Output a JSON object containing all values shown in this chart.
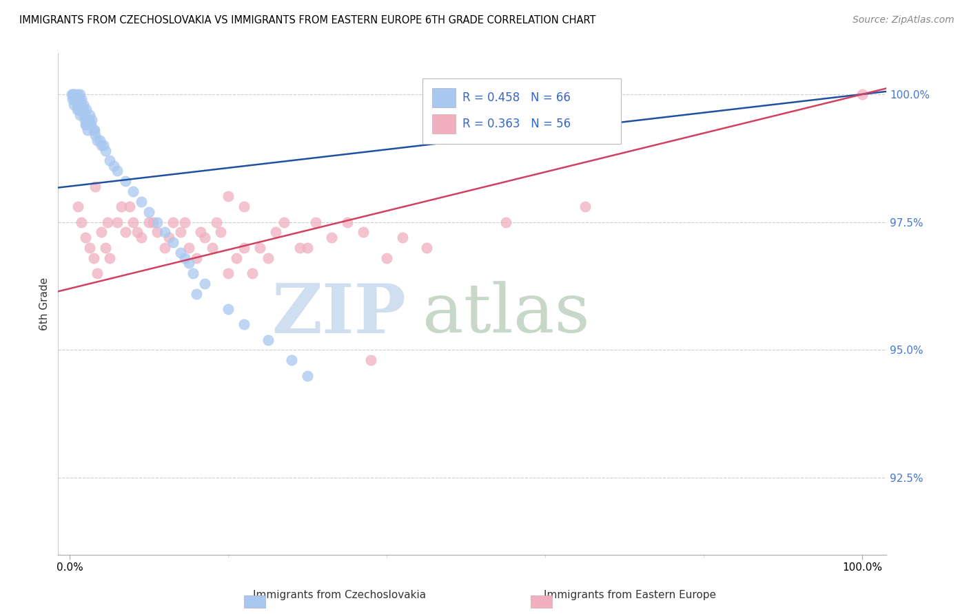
{
  "title": "IMMIGRANTS FROM CZECHOSLOVAKIA VS IMMIGRANTS FROM EASTERN EUROPE 6TH GRADE CORRELATION CHART",
  "source": "Source: ZipAtlas.com",
  "ylabel": "6th Grade",
  "y_ticks": [
    92.5,
    95.0,
    97.5,
    100.0
  ],
  "x_ticks": [
    0,
    100
  ],
  "x_tick_labels": [
    "0.0%",
    "100.0%"
  ],
  "y_min": 91.0,
  "y_max": 100.8,
  "x_min": -1.5,
  "x_max": 103.0,
  "legend_blue_r": "R = 0.458",
  "legend_blue_n": "N = 66",
  "legend_pink_r": "R = 0.363",
  "legend_pink_n": "N = 56",
  "legend_label_blue": "Immigrants from Czechoslovakia",
  "legend_label_pink": "Immigrants from Eastern Europe",
  "blue_color": "#A8C8F0",
  "pink_color": "#F0B0C0",
  "blue_line_color": "#2050A0",
  "pink_line_color": "#D04060",
  "blue_scatter_x": [
    0.2,
    0.3,
    0.4,
    0.5,
    0.6,
    0.7,
    0.8,
    0.9,
    1.0,
    1.1,
    1.2,
    1.3,
    1.4,
    1.5,
    1.6,
    1.7,
    1.8,
    1.9,
    2.0,
    2.1,
    2.2,
    2.3,
    2.5,
    2.7,
    3.0,
    3.2,
    3.5,
    4.0,
    4.5,
    5.0,
    5.5,
    6.0,
    7.0,
    8.0,
    9.0,
    10.0,
    11.0,
    12.0,
    13.0,
    14.0,
    15.0,
    17.0,
    20.0,
    22.0,
    25.0,
    28.0,
    30.0,
    14.5,
    15.5,
    16.0,
    3.8,
    4.2,
    2.8,
    3.1,
    1.1,
    0.6,
    0.9,
    1.3,
    2.1,
    0.4,
    0.7,
    0.5,
    1.0,
    0.8,
    1.6,
    2.4
  ],
  "blue_scatter_y": [
    100.0,
    99.9,
    100.0,
    99.8,
    99.9,
    100.0,
    99.9,
    99.8,
    100.0,
    99.7,
    99.9,
    100.0,
    99.8,
    99.9,
    99.7,
    99.8,
    99.6,
    99.5,
    99.4,
    99.7,
    99.3,
    99.5,
    99.6,
    99.4,
    99.3,
    99.2,
    99.1,
    99.0,
    98.9,
    98.7,
    98.6,
    98.5,
    98.3,
    98.1,
    97.9,
    97.7,
    97.5,
    97.3,
    97.1,
    96.9,
    96.7,
    96.3,
    95.8,
    95.5,
    95.2,
    94.8,
    94.5,
    96.8,
    96.5,
    96.1,
    99.1,
    99.0,
    99.5,
    99.3,
    99.8,
    99.9,
    99.7,
    99.6,
    99.4,
    100.0,
    99.9,
    100.0,
    99.8,
    99.9,
    99.7,
    99.5
  ],
  "pink_scatter_x": [
    1.0,
    1.5,
    2.0,
    2.5,
    3.0,
    3.5,
    4.0,
    4.5,
    5.0,
    6.0,
    7.0,
    7.5,
    8.0,
    9.0,
    10.0,
    11.0,
    12.0,
    13.0,
    14.0,
    15.0,
    16.0,
    17.0,
    18.0,
    19.0,
    20.0,
    21.0,
    22.0,
    23.0,
    24.0,
    25.0,
    27.0,
    29.0,
    31.0,
    33.0,
    35.0,
    37.0,
    40.0,
    45.0,
    55.0,
    65.0,
    100.0,
    3.2,
    4.8,
    6.5,
    8.5,
    10.5,
    12.5,
    14.5,
    16.5,
    18.5,
    22.0,
    26.0,
    30.0,
    38.0,
    42.0,
    20.0
  ],
  "pink_scatter_y": [
    97.8,
    97.5,
    97.2,
    97.0,
    96.8,
    96.5,
    97.3,
    97.0,
    96.8,
    97.5,
    97.3,
    97.8,
    97.5,
    97.2,
    97.5,
    97.3,
    97.0,
    97.5,
    97.3,
    97.0,
    96.8,
    97.2,
    97.0,
    97.3,
    96.5,
    96.8,
    97.0,
    96.5,
    97.0,
    96.8,
    97.5,
    97.0,
    97.5,
    97.2,
    97.5,
    97.3,
    96.8,
    97.0,
    97.5,
    97.8,
    100.0,
    98.2,
    97.5,
    97.8,
    97.3,
    97.5,
    97.2,
    97.5,
    97.3,
    97.5,
    97.8,
    97.3,
    97.0,
    94.8,
    97.2,
    98.0
  ]
}
